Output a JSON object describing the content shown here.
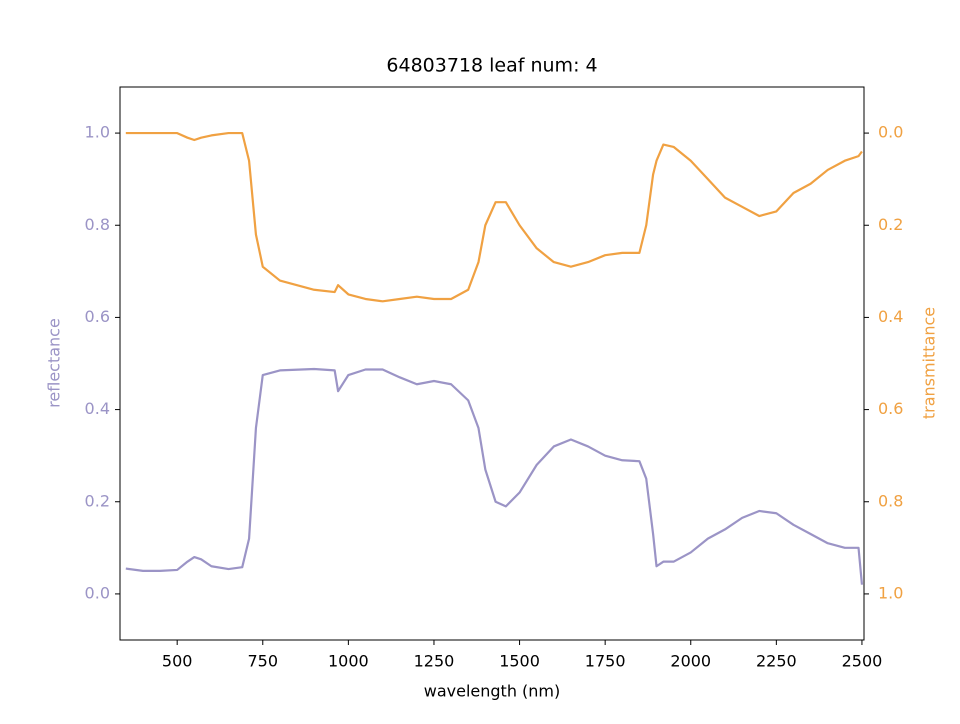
{
  "chart_data": {
    "type": "line",
    "title": "64803718 leaf num: 4",
    "x_label": "wavelength (nm)",
    "y_label": "reflectance",
    "y2_label": "transmittance",
    "x": [
      350,
      400,
      450,
      500,
      530,
      550,
      570,
      600,
      650,
      690,
      710,
      730,
      750,
      800,
      900,
      960,
      970,
      1000,
      1050,
      1100,
      1150,
      1200,
      1250,
      1300,
      1350,
      1380,
      1400,
      1430,
      1460,
      1500,
      1550,
      1600,
      1650,
      1700,
      1750,
      1800,
      1850,
      1870,
      1890,
      1900,
      1920,
      1950,
      2000,
      2050,
      2100,
      2150,
      2200,
      2250,
      2300,
      2350,
      2400,
      2450,
      2490,
      2500
    ],
    "series": [
      {
        "name": "reflectance",
        "color": "#9b94c6",
        "values": [
          0.055,
          0.05,
          0.05,
          0.052,
          0.07,
          0.08,
          0.075,
          0.06,
          0.054,
          0.058,
          0.12,
          0.36,
          0.475,
          0.485,
          0.488,
          0.485,
          0.44,
          0.475,
          0.487,
          0.487,
          0.47,
          0.455,
          0.462,
          0.455,
          0.42,
          0.36,
          0.27,
          0.2,
          0.19,
          0.22,
          0.28,
          0.32,
          0.335,
          0.32,
          0.3,
          0.29,
          0.288,
          0.25,
          0.13,
          0.06,
          0.07,
          0.07,
          0.09,
          0.12,
          0.14,
          0.165,
          0.18,
          0.175,
          0.15,
          0.13,
          0.11,
          0.1,
          0.1,
          0.02
        ]
      },
      {
        "name": "transmittance",
        "color": "#f0a142",
        "axis": "y2",
        "values": [
          0.0,
          0.0,
          0.0,
          0.0,
          0.01,
          0.015,
          0.01,
          0.005,
          0.0,
          0.0,
          0.06,
          0.22,
          0.29,
          0.32,
          0.34,
          0.345,
          0.33,
          0.35,
          0.36,
          0.365,
          0.36,
          0.355,
          0.36,
          0.36,
          0.34,
          0.28,
          0.2,
          0.15,
          0.15,
          0.2,
          0.25,
          0.28,
          0.29,
          0.28,
          0.265,
          0.26,
          0.26,
          0.2,
          0.09,
          0.06,
          0.025,
          0.03,
          0.06,
          0.1,
          0.14,
          0.16,
          0.18,
          0.17,
          0.13,
          0.11,
          0.08,
          0.06,
          0.05,
          0.04
        ]
      }
    ],
    "xlim": [
      333,
      2506
    ],
    "xticks": [
      500,
      750,
      1000,
      1250,
      1500,
      1750,
      2000,
      2250,
      2500
    ],
    "ylim": [
      -0.1,
      1.1
    ],
    "yticks": [
      {
        "value": 0,
        "label": "0.0"
      },
      {
        "value": 0.2,
        "label": "0.2"
      },
      {
        "value": 0.4,
        "label": "0.4"
      },
      {
        "value": 0.6,
        "label": "0.6"
      },
      {
        "value": 0.8,
        "label": "0.8"
      },
      {
        "value": 1,
        "label": "1.0"
      }
    ],
    "y2lim": [
      1.1,
      -0.1
    ],
    "y2ticks": [
      {
        "value": 0,
        "label": "0.0"
      },
      {
        "value": 0.2,
        "label": "0.2"
      },
      {
        "value": 0.4,
        "label": "0.4"
      },
      {
        "value": 0.6,
        "label": "0.6"
      },
      {
        "value": 0.8,
        "label": "0.8"
      },
      {
        "value": 1,
        "label": "1.0"
      }
    ]
  }
}
